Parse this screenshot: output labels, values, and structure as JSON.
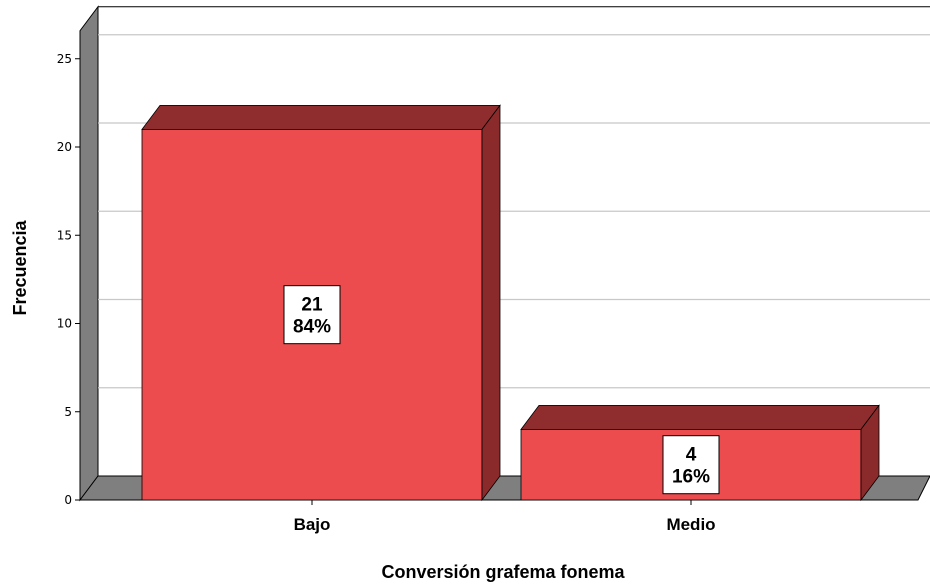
{
  "chart_data": {
    "type": "bar",
    "categories": [
      "Bajo",
      "Medio"
    ],
    "values": [
      21,
      4
    ],
    "value_labels": [
      {
        "count": "21",
        "percent": "84%"
      },
      {
        "count": "4",
        "percent": "16%"
      }
    ],
    "xlabel": "Conversión grafema fonema",
    "ylabel": "Frecuencia",
    "ylim": [
      0,
      25
    ],
    "yticks": [
      "0",
      "5",
      "10",
      "15",
      "20",
      "25"
    ],
    "grid": true,
    "legend": "none",
    "style": "3d",
    "colors": {
      "bar_front": "#EC4C4E",
      "bar_top": "#8F2D2E",
      "bar_side": "#8A2A2B",
      "floor": "#7F7F7F",
      "wall": "#7F7F7F",
      "grid": "#C8C8C8"
    }
  }
}
